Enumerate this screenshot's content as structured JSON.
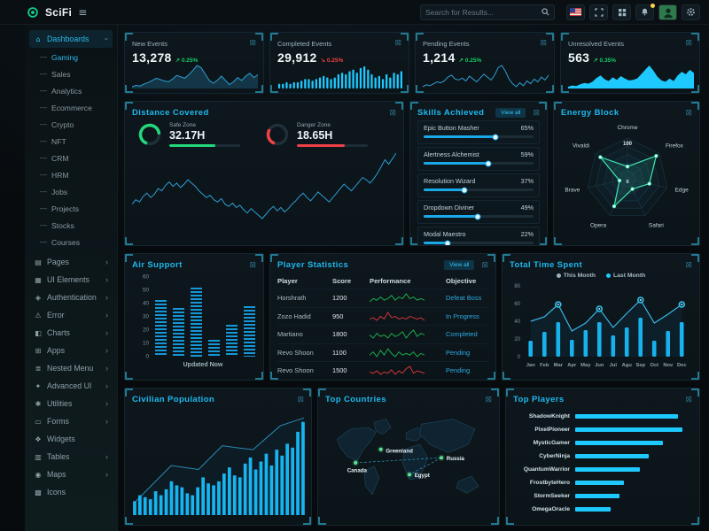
{
  "navbar": {
    "brand": "SciFi",
    "search_placeholder": "Search for Results...",
    "icons": [
      "search-icon",
      "us-flag-icon",
      "fullscreen-icon",
      "apps-grid-icon",
      "bell-icon",
      "avatar",
      "gear-icon"
    ]
  },
  "sidebar": {
    "sections": [
      {
        "label": "Dashboards",
        "icon": "home-icon",
        "glyph": "⌂",
        "expanded": true,
        "active": true,
        "children": [
          "Gaming",
          "Sales",
          "Analytics",
          "Ecommerce",
          "Crypto",
          "NFT",
          "CRM",
          "HRM",
          "Jobs",
          "Projects",
          "Stocks",
          "Courses"
        ],
        "active_child": "Gaming"
      },
      {
        "label": "Pages",
        "icon": "pages-icon",
        "glyph": "▤",
        "chevron": true
      },
      {
        "label": "UI Elements",
        "icon": "ui-elements-icon",
        "glyph": "▦",
        "chevron": true
      },
      {
        "label": "Authentication",
        "icon": "authentication-icon",
        "glyph": "◈",
        "chevron": true
      },
      {
        "label": "Error",
        "icon": "error-icon",
        "glyph": "⚠",
        "chevron": true
      },
      {
        "label": "Charts",
        "icon": "charts-icon",
        "glyph": "◧",
        "chevron": true
      },
      {
        "label": "Apps",
        "icon": "apps-icon",
        "glyph": "⊞",
        "chevron": true
      },
      {
        "label": "Nested Menu",
        "icon": "nested-menu-icon",
        "glyph": "≣",
        "chevron": true
      },
      {
        "label": "Advanced UI",
        "icon": "advanced-ui-icon",
        "glyph": "✦",
        "chevron": true
      },
      {
        "label": "Utilities",
        "icon": "utilities-icon",
        "glyph": "✱",
        "chevron": true
      },
      {
        "label": "Forms",
        "icon": "forms-icon",
        "glyph": "▭",
        "chevron": true
      },
      {
        "label": "Widgets",
        "icon": "widgets-icon",
        "glyph": "❖",
        "chevron": false
      },
      {
        "label": "Tables",
        "icon": "tables-icon",
        "glyph": "▥",
        "chevron": true
      },
      {
        "label": "Maps",
        "icon": "maps-icon",
        "glyph": "◉",
        "chevron": true
      },
      {
        "label": "Icons",
        "icon": "icons-icon",
        "glyph": "▩",
        "chevron": false
      }
    ]
  },
  "cards": {
    "stats": [
      {
        "title": "New Events",
        "value": "13,278",
        "change": "0.25%",
        "direction": "up",
        "spark": "new_events"
      },
      {
        "title": "Completed Events",
        "value": "29,912",
        "change": "0.25%",
        "direction": "down",
        "spark": "completed_events"
      },
      {
        "title": "Pending Events",
        "value": "1,214",
        "change": "0.25%",
        "direction": "up",
        "spark": "pending_events"
      },
      {
        "title": "Unresolved Events",
        "value": "563",
        "change": "0.35%",
        "direction": "up",
        "spark": "unresolved_events"
      }
    ],
    "distance": {
      "title": "Distance Covered",
      "gauges": [
        {
          "label": "Safe Zone",
          "value": "32.17H",
          "percent": 65,
          "bar_percent": 65,
          "color": "#22d87a"
        },
        {
          "label": "Danger Zone",
          "value": "18.65H",
          "percent": 25,
          "bar_percent": 68,
          "color": "#ef4146"
        }
      ]
    },
    "skills": {
      "title": "Skills Achieved",
      "action": "View all",
      "items": [
        {
          "label": "Epic Button Masher",
          "percent": 65
        },
        {
          "label": "Alertness Alchemist",
          "percent": 59
        },
        {
          "label": "Resolution Wizard",
          "percent": 37
        },
        {
          "label": "Dropdown Diviner",
          "percent": 49
        },
        {
          "label": "Modal Maestro",
          "percent": 22
        }
      ]
    },
    "energy": {
      "title": "Energy Block"
    },
    "air": {
      "title": "Air Support",
      "caption": "Updated Now"
    },
    "players_table": {
      "title": "Player Statistics",
      "action": "View all",
      "columns": [
        "Player",
        "Score",
        "Performance",
        "Objective"
      ],
      "rows": [
        {
          "player": "Horshrath",
          "score": "1200",
          "objective": "Defeat Boss",
          "trend_color": "#1db954",
          "trend": [
            5,
            7,
            6,
            8,
            6,
            7,
            9,
            6,
            8,
            7,
            10,
            7,
            8,
            6,
            7,
            6
          ]
        },
        {
          "player": "Zozo Hadid",
          "score": "950",
          "objective": "In Progress",
          "trend_color": "#e5383f",
          "trend": [
            6,
            7,
            5,
            8,
            6,
            11,
            7,
            8,
            6,
            7,
            6,
            8,
            7,
            6,
            7,
            5
          ]
        },
        {
          "player": "Martiano",
          "score": "1800",
          "objective": "Completed",
          "trend_color": "#1db954",
          "trend": [
            7,
            5,
            8,
            6,
            7,
            5,
            8,
            6,
            7,
            9,
            5,
            8,
            10,
            6,
            8,
            7
          ]
        },
        {
          "player": "Revo Shoon",
          "score": "1100",
          "objective": "Pending",
          "trend_color": "#1db954",
          "trend": [
            6,
            8,
            5,
            9,
            6,
            10,
            7,
            5,
            8,
            6,
            7,
            6,
            8,
            5,
            7,
            6
          ]
        },
        {
          "player": "Revo Shoon",
          "score": "1500",
          "objective": "Pending",
          "trend_color": "#e5383f",
          "trend": [
            7,
            6,
            8,
            5,
            7,
            6,
            9,
            5,
            8,
            6,
            10,
            12,
            6,
            8,
            7,
            6
          ]
        }
      ]
    },
    "total_time": {
      "title": "Total Time Spent"
    },
    "civilian": {
      "title": "Civilian Population"
    },
    "countries": {
      "title": "Top Countries"
    },
    "top_players": {
      "title": "Top Players"
    }
  },
  "chart_data": {
    "new_events": {
      "type": "area",
      "values": [
        22,
        24,
        23,
        26,
        28,
        31,
        34,
        32,
        30,
        29,
        33,
        38,
        36,
        34,
        39,
        45,
        52,
        49,
        40,
        31,
        27,
        31,
        37,
        31,
        25,
        29,
        35,
        31,
        37,
        41,
        35,
        39
      ]
    },
    "completed_events": {
      "type": "bar",
      "values": [
        3,
        3,
        4,
        3,
        4,
        4,
        5,
        6,
        6,
        5,
        6,
        7,
        8,
        7,
        6,
        7,
        9,
        10,
        9,
        11,
        12,
        10,
        13,
        14,
        12,
        9,
        7,
        8,
        6,
        9,
        7,
        10,
        9,
        11
      ]
    },
    "pending_events": {
      "type": "line",
      "values": [
        30,
        32,
        31,
        33,
        35,
        34,
        36,
        40,
        42,
        38,
        37,
        39,
        36,
        41,
        38,
        35,
        39,
        43,
        40,
        37,
        42,
        50,
        52,
        46,
        38,
        33,
        30,
        34,
        31,
        36,
        33,
        38,
        35,
        40,
        37,
        42
      ]
    },
    "unresolved_events": {
      "type": "area-solid",
      "values": [
        18,
        20,
        19,
        22,
        24,
        23,
        26,
        32,
        36,
        30,
        27,
        33,
        29,
        35,
        31,
        28,
        29,
        31,
        38,
        45,
        52,
        44,
        34,
        28,
        26,
        31,
        27,
        36,
        42,
        38,
        45,
        40
      ]
    },
    "distance_covered": {
      "type": "line",
      "values": [
        38,
        42,
        40,
        45,
        48,
        44,
        47,
        52,
        50,
        55,
        58,
        54,
        57,
        53,
        56,
        60,
        57,
        54,
        50,
        47,
        44,
        46,
        42,
        40,
        43,
        38,
        36,
        39,
        35,
        37,
        33,
        30,
        34,
        31,
        28,
        25,
        29,
        33,
        36,
        32,
        35,
        31,
        34,
        38,
        41,
        45,
        48,
        44,
        41,
        45,
        49,
        46,
        43,
        40,
        44,
        48,
        52,
        56,
        53,
        50,
        54,
        58,
        62,
        60,
        57,
        61,
        66,
        72,
        78,
        74,
        79,
        84
      ]
    },
    "energy_block": {
      "type": "radar",
      "categories": [
        "Chrome",
        "Firefox",
        "Edge",
        "Safari",
        "Opera",
        "Brave",
        "Vivaldi"
      ],
      "values": [
        30,
        90,
        55,
        28,
        75,
        20,
        85
      ],
      "max": 100,
      "rings": [
        20,
        40,
        60,
        80,
        100
      ],
      "max_label": "100",
      "min_label": "0"
    },
    "air_support": {
      "type": "bar",
      "values": [
        43,
        37,
        52,
        13,
        24,
        38
      ],
      "ylim": [
        0,
        60
      ],
      "yticks": [
        0,
        10,
        20,
        30,
        40,
        50,
        60
      ],
      "caption": "Updated Now"
    },
    "total_time_spent": {
      "type": "combo",
      "categories": [
        "Jan",
        "Feb",
        "Mar",
        "Apr",
        "May",
        "Jun",
        "Jul",
        "Agu",
        "Sep",
        "Oct",
        "Nov",
        "Dec"
      ],
      "series": [
        {
          "name": "This Month",
          "type": "line",
          "values": [
            40,
            45,
            59,
            29,
            38,
            54,
            33,
            49,
            64,
            38,
            48,
            59
          ],
          "markers": [
            2,
            5,
            8,
            11
          ]
        },
        {
          "name": "Last Month",
          "type": "bar",
          "values": [
            18,
            28,
            39,
            19,
            30,
            39,
            24,
            33,
            44,
            18,
            29,
            39
          ]
        }
      ],
      "legend_colors": [
        "#9db4bf",
        "#1ec9ff"
      ],
      "ylim": [
        0,
        80
      ],
      "yticks": [
        0,
        20,
        40,
        60,
        80
      ]
    },
    "civilian_population": {
      "type": "bar+line",
      "bars": [
        7,
        10,
        9,
        8,
        12,
        10,
        13,
        17,
        15,
        14,
        11,
        10,
        14,
        19,
        16,
        15,
        17,
        21,
        24,
        20,
        19,
        26,
        29,
        23,
        27,
        31,
        25,
        33,
        30,
        36,
        34,
        42,
        47
      ],
      "line_points": [
        [
          0,
          6
        ],
        [
          22,
          25
        ],
        [
          30,
          24
        ],
        [
          38,
          23
        ],
        [
          52,
          35
        ],
        [
          60,
          34
        ],
        [
          70,
          33
        ],
        [
          86,
          45
        ],
        [
          100,
          49
        ]
      ],
      "ylim": [
        0,
        50
      ]
    },
    "top_countries": {
      "type": "map",
      "locations": [
        {
          "name": "Greenland",
          "x": 66,
          "y": 50,
          "lx": 6,
          "ly": 4
        },
        {
          "name": "Canada",
          "x": 36,
          "y": 66,
          "lx": -10,
          "ly": 11
        },
        {
          "name": "Russia",
          "x": 138,
          "y": 60,
          "lx": 6,
          "ly": 3
        },
        {
          "name": "Egypt",
          "x": 100,
          "y": 80,
          "lx": 6,
          "ly": 3
        }
      ],
      "routes": [
        [
          "Canada",
          "Russia"
        ],
        [
          "Russia",
          "Egypt"
        ]
      ]
    },
    "top_players": {
      "type": "hbar",
      "categories": [
        "ShadowKnight",
        "PixelPioneer",
        "MysticGamer",
        "CyberNinja",
        "QuantumWarrior",
        "FrostbyteHero",
        "StormSeeker",
        "OmegaOracle"
      ],
      "values": [
        88,
        92,
        75,
        63,
        55,
        42,
        38,
        30
      ]
    }
  },
  "colors": {
    "accent": "#1ec9ff",
    "title": "#1fb9ee",
    "green": "#17c964",
    "red": "#f03e45",
    "radar": "#3de8b2",
    "spark_line": "#2f9fd6",
    "bar": "#18b7f2"
  }
}
